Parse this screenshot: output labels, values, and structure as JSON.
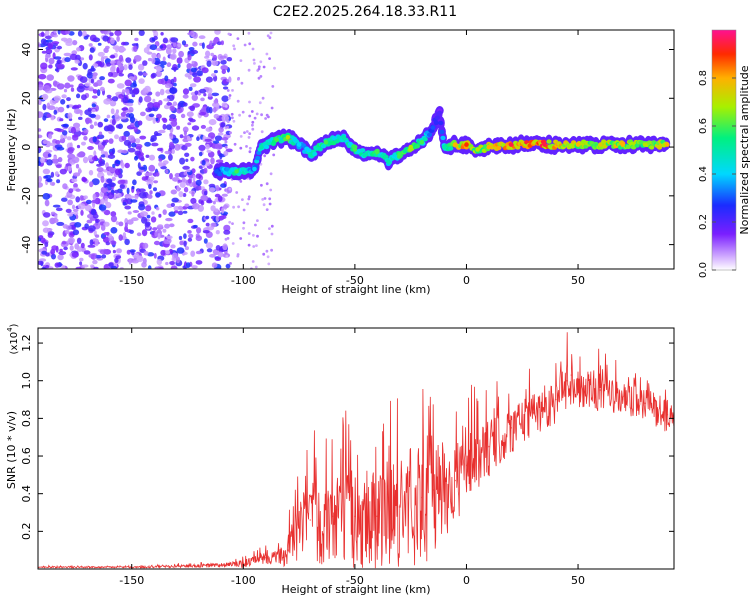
{
  "title": "C2E2.2025.264.18.33.R11",
  "chart_data": [
    {
      "type": "heatmap",
      "xlabel": "Height of straight line (km)",
      "ylabel": "Frequency (Hz)",
      "xlim": [
        -192,
        93
      ],
      "ylim": [
        -50,
        48
      ],
      "x_ticks": [
        -150,
        -100,
        -50,
        0,
        50
      ],
      "x_tick_labels": [
        "-150",
        "-100",
        "-50",
        "0",
        "50"
      ],
      "y_ticks": [
        -40,
        -20,
        0,
        20,
        40
      ],
      "y_tick_labels": [
        "-40",
        "-20",
        "0",
        "20",
        "40"
      ],
      "colorbar": {
        "label": "Normalized spectral amplitude",
        "range": [
          0,
          1
        ],
        "ticks": [
          0.0,
          0.2,
          0.4,
          0.6,
          0.8
        ],
        "tick_labels": [
          "0.0",
          "0.2",
          "0.4",
          "0.6",
          "0.8"
        ]
      },
      "noise_region_x": [
        -192,
        -108
      ],
      "trace": [
        {
          "x": -112,
          "y": -10,
          "amp": 0.3
        },
        {
          "x": -103,
          "y": -10,
          "amp": 0.6
        },
        {
          "x": -95,
          "y": -9,
          "amp": 0.4
        },
        {
          "x": -92,
          "y": 0,
          "amp": 0.5
        },
        {
          "x": -85,
          "y": 3,
          "amp": 0.6
        },
        {
          "x": -80,
          "y": 4,
          "amp": 0.7
        },
        {
          "x": -75,
          "y": 1,
          "amp": 0.4
        },
        {
          "x": -70,
          "y": -3,
          "amp": 0.5
        },
        {
          "x": -63,
          "y": 2,
          "amp": 0.6
        },
        {
          "x": -55,
          "y": 4,
          "amp": 0.5
        },
        {
          "x": -50,
          "y": -1,
          "amp": 0.6
        },
        {
          "x": -45,
          "y": -3,
          "amp": 0.5
        },
        {
          "x": -40,
          "y": -2,
          "amp": 0.6
        },
        {
          "x": -35,
          "y": -6,
          "amp": 0.5
        },
        {
          "x": -30,
          "y": -3,
          "amp": 0.6
        },
        {
          "x": -25,
          "y": 0,
          "amp": 0.7
        },
        {
          "x": -20,
          "y": 2,
          "amp": 0.6
        },
        {
          "x": -15,
          "y": 8,
          "amp": 0.3
        },
        {
          "x": -12,
          "y": 14,
          "amp": 0.2
        },
        {
          "x": -10,
          "y": 0,
          "amp": 0.5
        },
        {
          "x": -5,
          "y": 1,
          "amp": 0.8
        },
        {
          "x": 0,
          "y": 1,
          "amp": 0.9
        },
        {
          "x": 5,
          "y": -1,
          "amp": 0.7
        },
        {
          "x": 10,
          "y": 0,
          "amp": 0.8
        },
        {
          "x": 20,
          "y": 1,
          "amp": 0.95
        },
        {
          "x": 35,
          "y": 1,
          "amp": 0.95
        },
        {
          "x": 50,
          "y": 1,
          "amp": 0.8
        },
        {
          "x": 60,
          "y": 1,
          "amp": 0.75
        },
        {
          "x": 70,
          "y": 1,
          "amp": 0.8
        },
        {
          "x": 80,
          "y": 1,
          "amp": 0.7
        },
        {
          "x": 90,
          "y": 1,
          "amp": 0.8
        }
      ]
    },
    {
      "type": "line",
      "xlabel": "Height of straight line (km)",
      "ylabel": "SNR (10 * v/v)",
      "y_multiplier_base": "(x10",
      "y_multiplier_exp": "4",
      "y_multiplier_close": ")",
      "xlim": [
        -192,
        93
      ],
      "ylim": [
        0,
        1.28
      ],
      "x_ticks": [
        -150,
        -100,
        -50,
        0,
        50
      ],
      "x_tick_labels": [
        "-150",
        "-100",
        "-50",
        "0",
        "50"
      ],
      "y_ticks": [
        0.2,
        0.4,
        0.6,
        0.8,
        1.0,
        1.2
      ],
      "y_tick_labels": [
        "0.2",
        "0.4",
        "0.6",
        "0.8",
        "1.0",
        "1.2"
      ],
      "series": [
        {
          "name": "SNR",
          "color": "#e8302f",
          "x": [
            -192,
            -150,
            -110,
            -100,
            -90,
            -80,
            -75,
            -70,
            -60,
            -50,
            -40,
            -30,
            -20,
            -15,
            -10,
            -5,
            0,
            10,
            20,
            30,
            40,
            45,
            47,
            50,
            60,
            70,
            80,
            90,
            93
          ],
          "y": [
            0.01,
            0.01,
            0.02,
            0.03,
            0.06,
            0.1,
            0.22,
            0.26,
            0.28,
            0.28,
            0.28,
            0.33,
            0.38,
            0.42,
            0.45,
            0.47,
            0.55,
            0.65,
            0.75,
            0.83,
            0.9,
            1.0,
            1.03,
            0.98,
            0.95,
            0.9,
            0.88,
            0.82,
            0.8
          ],
          "spread": [
            0.005,
            0.005,
            0.015,
            0.03,
            0.04,
            0.12,
            0.22,
            0.3,
            0.32,
            0.36,
            0.38,
            0.42,
            0.45,
            0.45,
            0.4,
            0.3,
            0.25,
            0.2,
            0.18,
            0.16,
            0.16,
            0.18,
            0.2,
            0.16,
            0.14,
            0.12,
            0.12,
            0.12,
            0.1
          ]
        }
      ]
    }
  ]
}
